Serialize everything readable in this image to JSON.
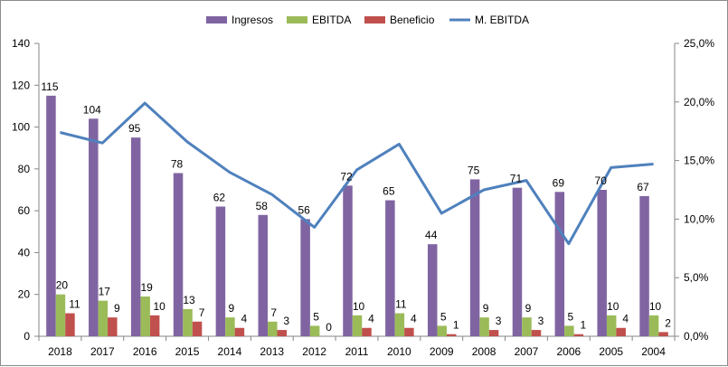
{
  "chart_data": {
    "type": "bar",
    "categories": [
      "2018",
      "2017",
      "2016",
      "2015",
      "2014",
      "2013",
      "2012",
      "2011",
      "2010",
      "2009",
      "2008",
      "2007",
      "2006",
      "2005",
      "2004"
    ],
    "series": [
      {
        "name": "Ingresos",
        "type": "bar",
        "axis": "left",
        "color": "#8064a2",
        "values": [
          115,
          104,
          95,
          78,
          62,
          58,
          56,
          72,
          65,
          44,
          75,
          71,
          69,
          70,
          67
        ]
      },
      {
        "name": "EBITDA",
        "type": "bar",
        "axis": "left",
        "color": "#9bbb59",
        "values": [
          20,
          17,
          19,
          13,
          9,
          7,
          5,
          10,
          11,
          5,
          9,
          9,
          5,
          10,
          10
        ]
      },
      {
        "name": "Beneficio",
        "type": "bar",
        "axis": "left",
        "color": "#c0504d",
        "values": [
          11,
          9,
          10,
          7,
          4,
          3,
          0,
          4,
          4,
          1,
          3,
          3,
          1,
          4,
          2
        ]
      },
      {
        "name": "M. EBITDA",
        "type": "line",
        "axis": "right",
        "color": "#4f81bd",
        "values": [
          17.4,
          16.5,
          19.9,
          16.6,
          14.0,
          12.1,
          9.3,
          14.2,
          16.4,
          10.5,
          12.5,
          13.3,
          7.9,
          14.4,
          14.7
        ]
      }
    ],
    "ylim_left": [
      0,
      140
    ],
    "yticks_left": [
      "0",
      "20",
      "40",
      "60",
      "80",
      "100",
      "120",
      "140"
    ],
    "ylim_right": [
      0,
      25
    ],
    "yticks_right": [
      "0,0%",
      "5,0%",
      "10,0%",
      "15,0%",
      "20,0%",
      "25,0%"
    ],
    "legend_position": "top",
    "grid": false
  }
}
